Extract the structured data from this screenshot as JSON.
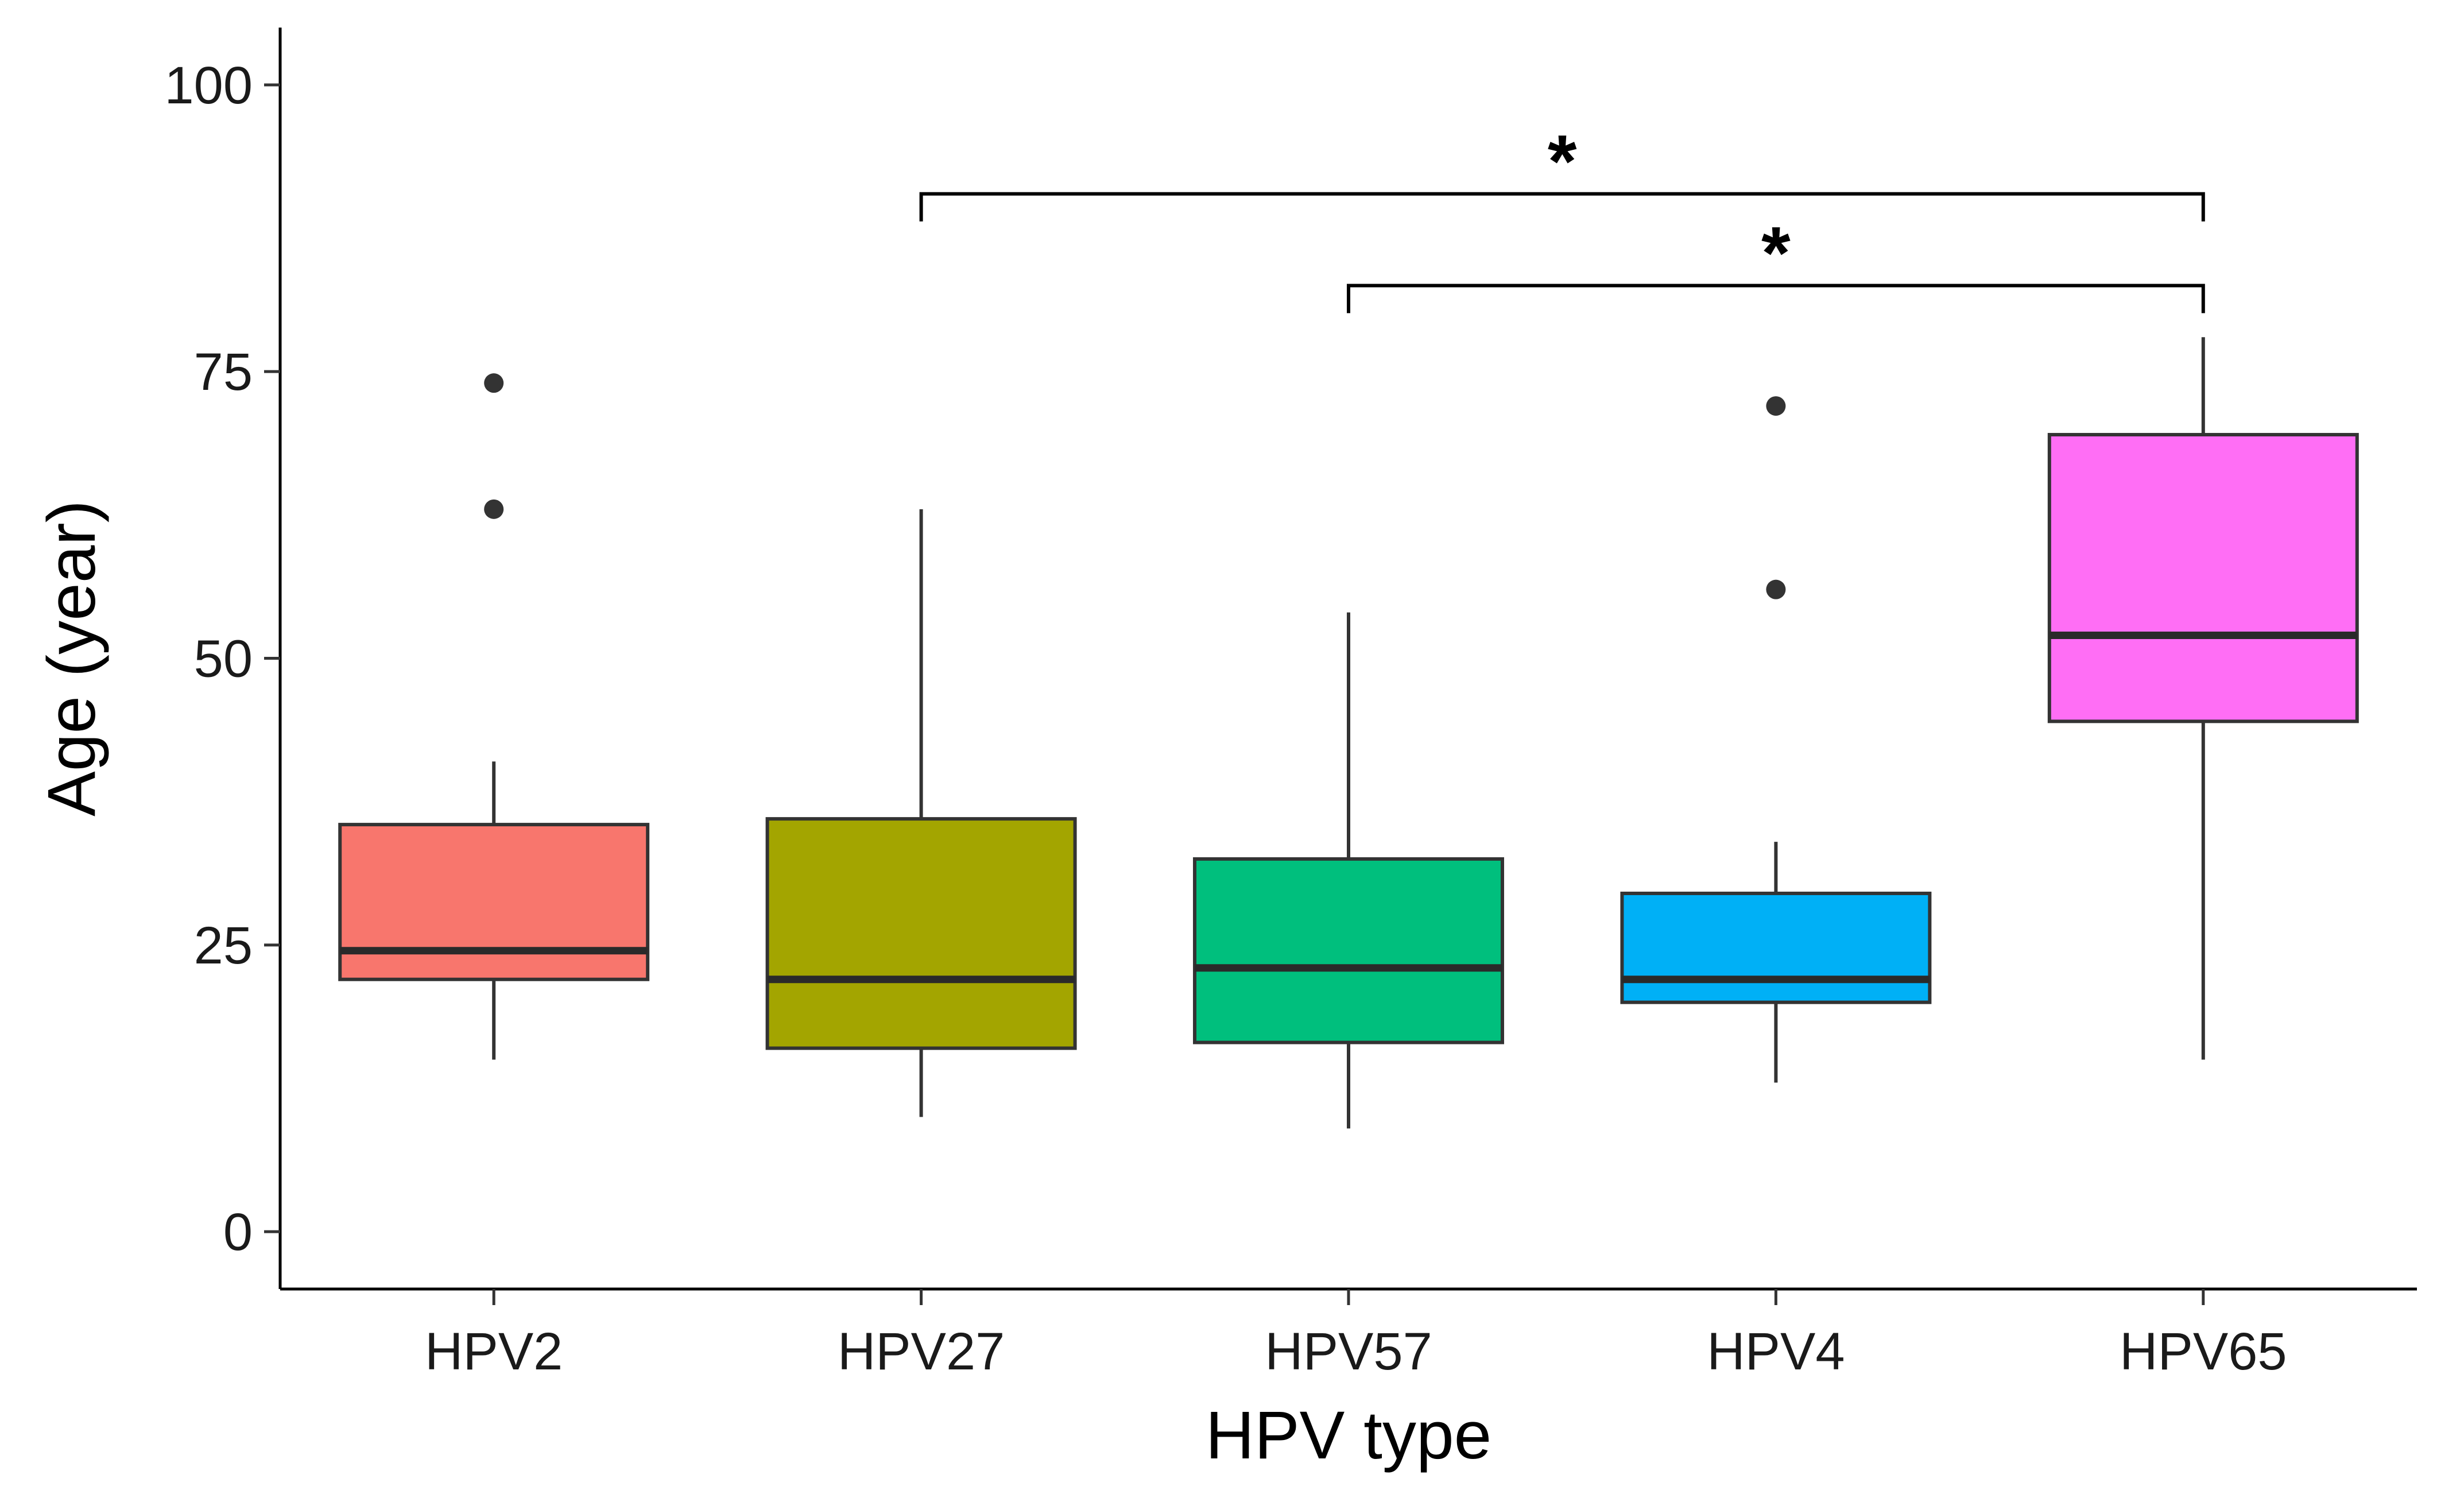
{
  "chart_data": {
    "type": "box",
    "title": "",
    "xlabel": "HPV type",
    "ylabel": "Age (year)",
    "ylim": [
      -5,
      105
    ],
    "yticks": [
      0,
      25,
      50,
      75,
      100
    ],
    "grid": false,
    "legend": "none",
    "categories": [
      "HPV2",
      "HPV27",
      "HPV57",
      "HPV4",
      "HPV65"
    ],
    "boxes": [
      {
        "category": "HPV2",
        "whisker_low": 15,
        "q1": 22,
        "median": 24.5,
        "q3": 35.5,
        "whisker_high": 41,
        "outliers": [
          63,
          74
        ],
        "color": "#F8766D"
      },
      {
        "category": "HPV27",
        "whisker_low": 10,
        "q1": 16,
        "median": 22,
        "q3": 36,
        "whisker_high": 63,
        "outliers": [],
        "color": "#A3A500"
      },
      {
        "category": "HPV57",
        "whisker_low": 9,
        "q1": 16.5,
        "median": 23,
        "q3": 32.5,
        "whisker_high": 54,
        "outliers": [],
        "color": "#00BF7D"
      },
      {
        "category": "HPV4",
        "whisker_low": 13,
        "q1": 20,
        "median": 22,
        "q3": 29.5,
        "whisker_high": 34,
        "outliers": [
          56,
          72
        ],
        "color": "#00B0F6"
      },
      {
        "category": "HPV65",
        "whisker_low": 15,
        "q1": 44.5,
        "median": 52,
        "q3": 69.5,
        "whisker_high": 78,
        "outliers": [],
        "color": "#FF6EF5"
      }
    ],
    "annotations": [
      {
        "from": "HPV27",
        "to": "HPV65",
        "y": 90.5,
        "label": "*"
      },
      {
        "from": "HPV57",
        "to": "HPV65",
        "y": 82.5,
        "label": "*"
      }
    ]
  }
}
